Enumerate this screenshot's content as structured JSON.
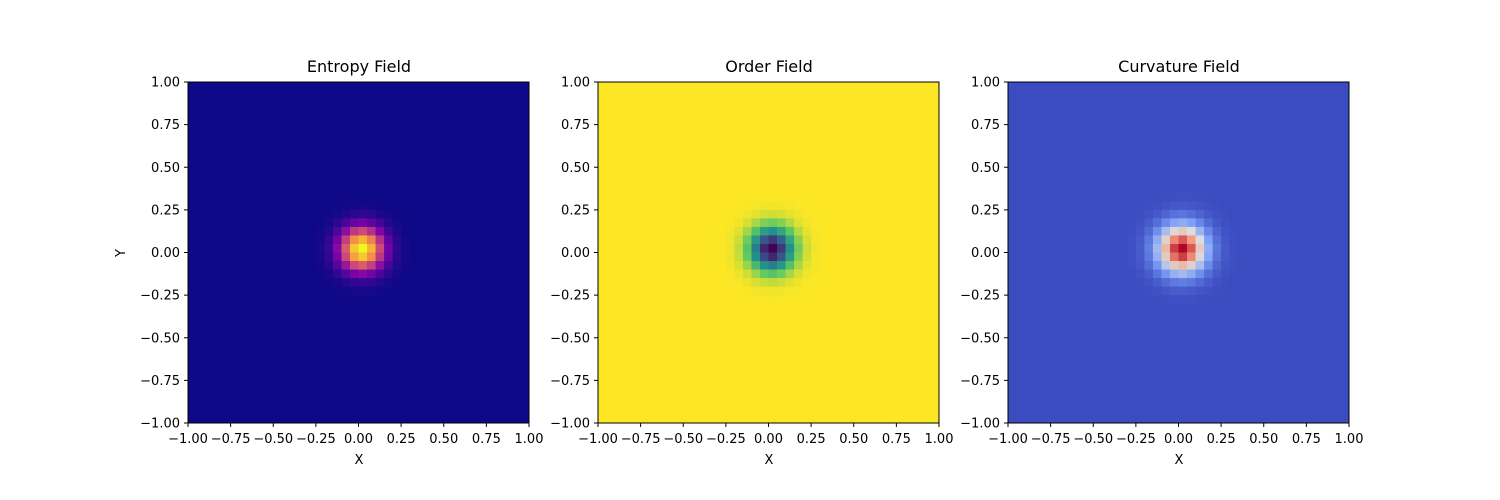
{
  "chart_data": [
    {
      "type": "heatmap",
      "title": "Entropy Field",
      "xlabel": "X",
      "ylabel": "Y",
      "xlim": [
        -1.0,
        1.0
      ],
      "ylim": [
        -1.0,
        1.0
      ],
      "xticks": [
        "−1.00",
        "−0.75",
        "−0.50",
        "−0.25",
        "0.00",
        "0.25",
        "0.50",
        "0.75",
        "1.00"
      ],
      "yticks": [
        "−1.00",
        "−0.75",
        "−0.50",
        "−0.25",
        "0.00",
        "0.25",
        "0.50",
        "0.75",
        "1.00"
      ],
      "colormap": "plasma",
      "field": {
        "shape": "gaussian-peak",
        "center": [
          0.02,
          0.02
        ],
        "sigma": 0.09,
        "peak": "max"
      },
      "colors": [
        "#0d0887",
        "#7e03a8",
        "#cc4778",
        "#f89540",
        "#f0f921"
      ]
    },
    {
      "type": "heatmap",
      "title": "Order Field",
      "xlabel": "X",
      "ylabel": "",
      "xlim": [
        -1.0,
        1.0
      ],
      "ylim": [
        -1.0,
        1.0
      ],
      "xticks": [
        "−1.00",
        "−0.75",
        "−0.50",
        "−0.25",
        "0.00",
        "0.25",
        "0.50",
        "0.75",
        "1.00"
      ],
      "yticks": [
        "−1.00",
        "−0.75",
        "−0.50",
        "−0.25",
        "0.00",
        "0.25",
        "0.50",
        "0.75",
        "1.00"
      ],
      "colormap": "viridis",
      "field": {
        "shape": "gaussian-dip",
        "center": [
          0.02,
          0.02
        ],
        "sigma": 0.09,
        "peak": "min"
      },
      "colors": [
        "#440154",
        "#3b528b",
        "#21918c",
        "#5ec962",
        "#fde725"
      ]
    },
    {
      "type": "heatmap",
      "title": "Curvature Field",
      "xlabel": "X",
      "ylabel": "",
      "xlim": [
        -1.0,
        1.0
      ],
      "ylim": [
        -1.0,
        1.0
      ],
      "xticks": [
        "−1.00",
        "−0.75",
        "−0.50",
        "−0.25",
        "0.00",
        "0.25",
        "0.50",
        "0.75",
        "1.00"
      ],
      "yticks": [
        "−1.00",
        "−0.75",
        "−0.50",
        "−0.25",
        "0.00",
        "0.25",
        "0.50",
        "0.75",
        "1.00"
      ],
      "colormap": "coolwarm",
      "field": {
        "shape": "gaussian-peak",
        "center": [
          0.02,
          0.02
        ],
        "sigma": 0.1,
        "peak": "max"
      },
      "colors": [
        "#3b4cc0",
        "#7b9ff9",
        "#dddddd",
        "#f49a7b",
        "#b40426"
      ]
    }
  ]
}
